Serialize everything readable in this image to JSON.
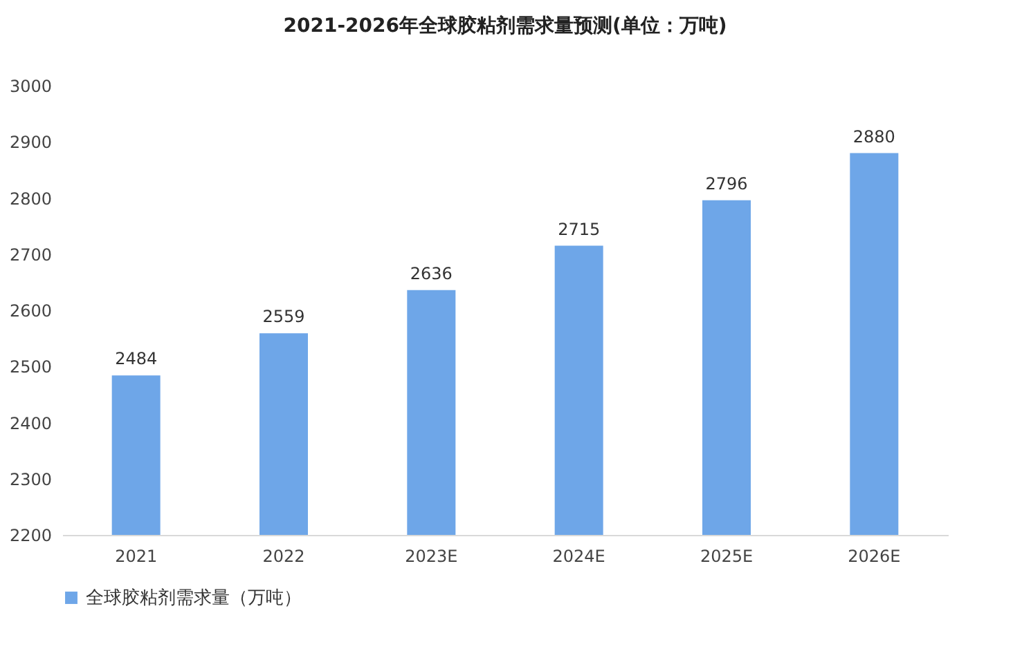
{
  "chart_data": {
    "type": "bar",
    "title": "2021-2026年全球胶粘剂需求量预测(单位：万吨)",
    "categories": [
      "2021",
      "2022",
      "2023E",
      "2024E",
      "2025E",
      "2026E"
    ],
    "series": [
      {
        "name": "全球胶粘剂需求量（万吨）",
        "color": "#6ea6e8",
        "values": [
          2484,
          2559,
          2636,
          2715,
          2796,
          2880
        ]
      }
    ],
    "ylim": [
      2200,
      3000
    ],
    "yticks": [
      2200,
      2300,
      2400,
      2500,
      2600,
      2700,
      2800,
      2900,
      3000
    ],
    "grid": false,
    "legend": "bottom",
    "data_labels": true
  }
}
